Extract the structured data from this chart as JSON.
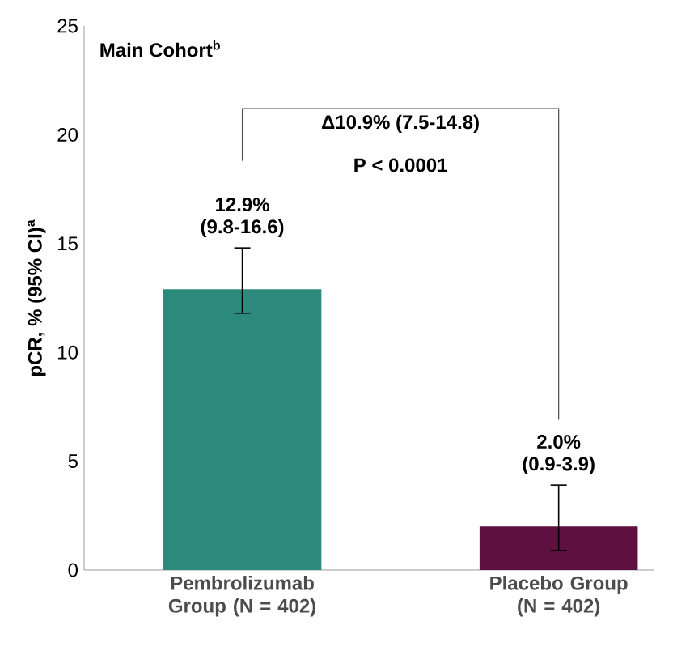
{
  "chart_data": {
    "type": "bar",
    "title": "Main Cohort$^{b}$",
    "ylabel": "pCR, % (95% CI)$^{a}$",
    "categories": [
      "Pembrolizumab Group (N = 402)",
      "Placebo Group (N = 402)"
    ],
    "values": [
      12.9,
      2.0
    ],
    "colors": [
      "#2b8a7b",
      "#5e1040"
    ],
    "errors": [
      [
        11.8,
        14.8
      ],
      [
        0.9,
        3.9
      ]
    ],
    "annotations": [
      "12.9%",
      {
        "text": "(9.8-16.6)",
        "x": "Pembrolizumab Group (N = 402)",
        "y": 14.8
      },
      "2.0%",
      {
        "text": "(0.9-3.9)",
        "x": "Placebo Group (N = 402)",
        "y": 3.9
      },
      "Δ10.9% (7.5-14.8)",
      "P < 0.0001"
    ],
    "ylim": [
      0,
      25
    ],
    "yticks": [
      0,
      5,
      10,
      15,
      20,
      25
    ],
    "grid": false
  }
}
